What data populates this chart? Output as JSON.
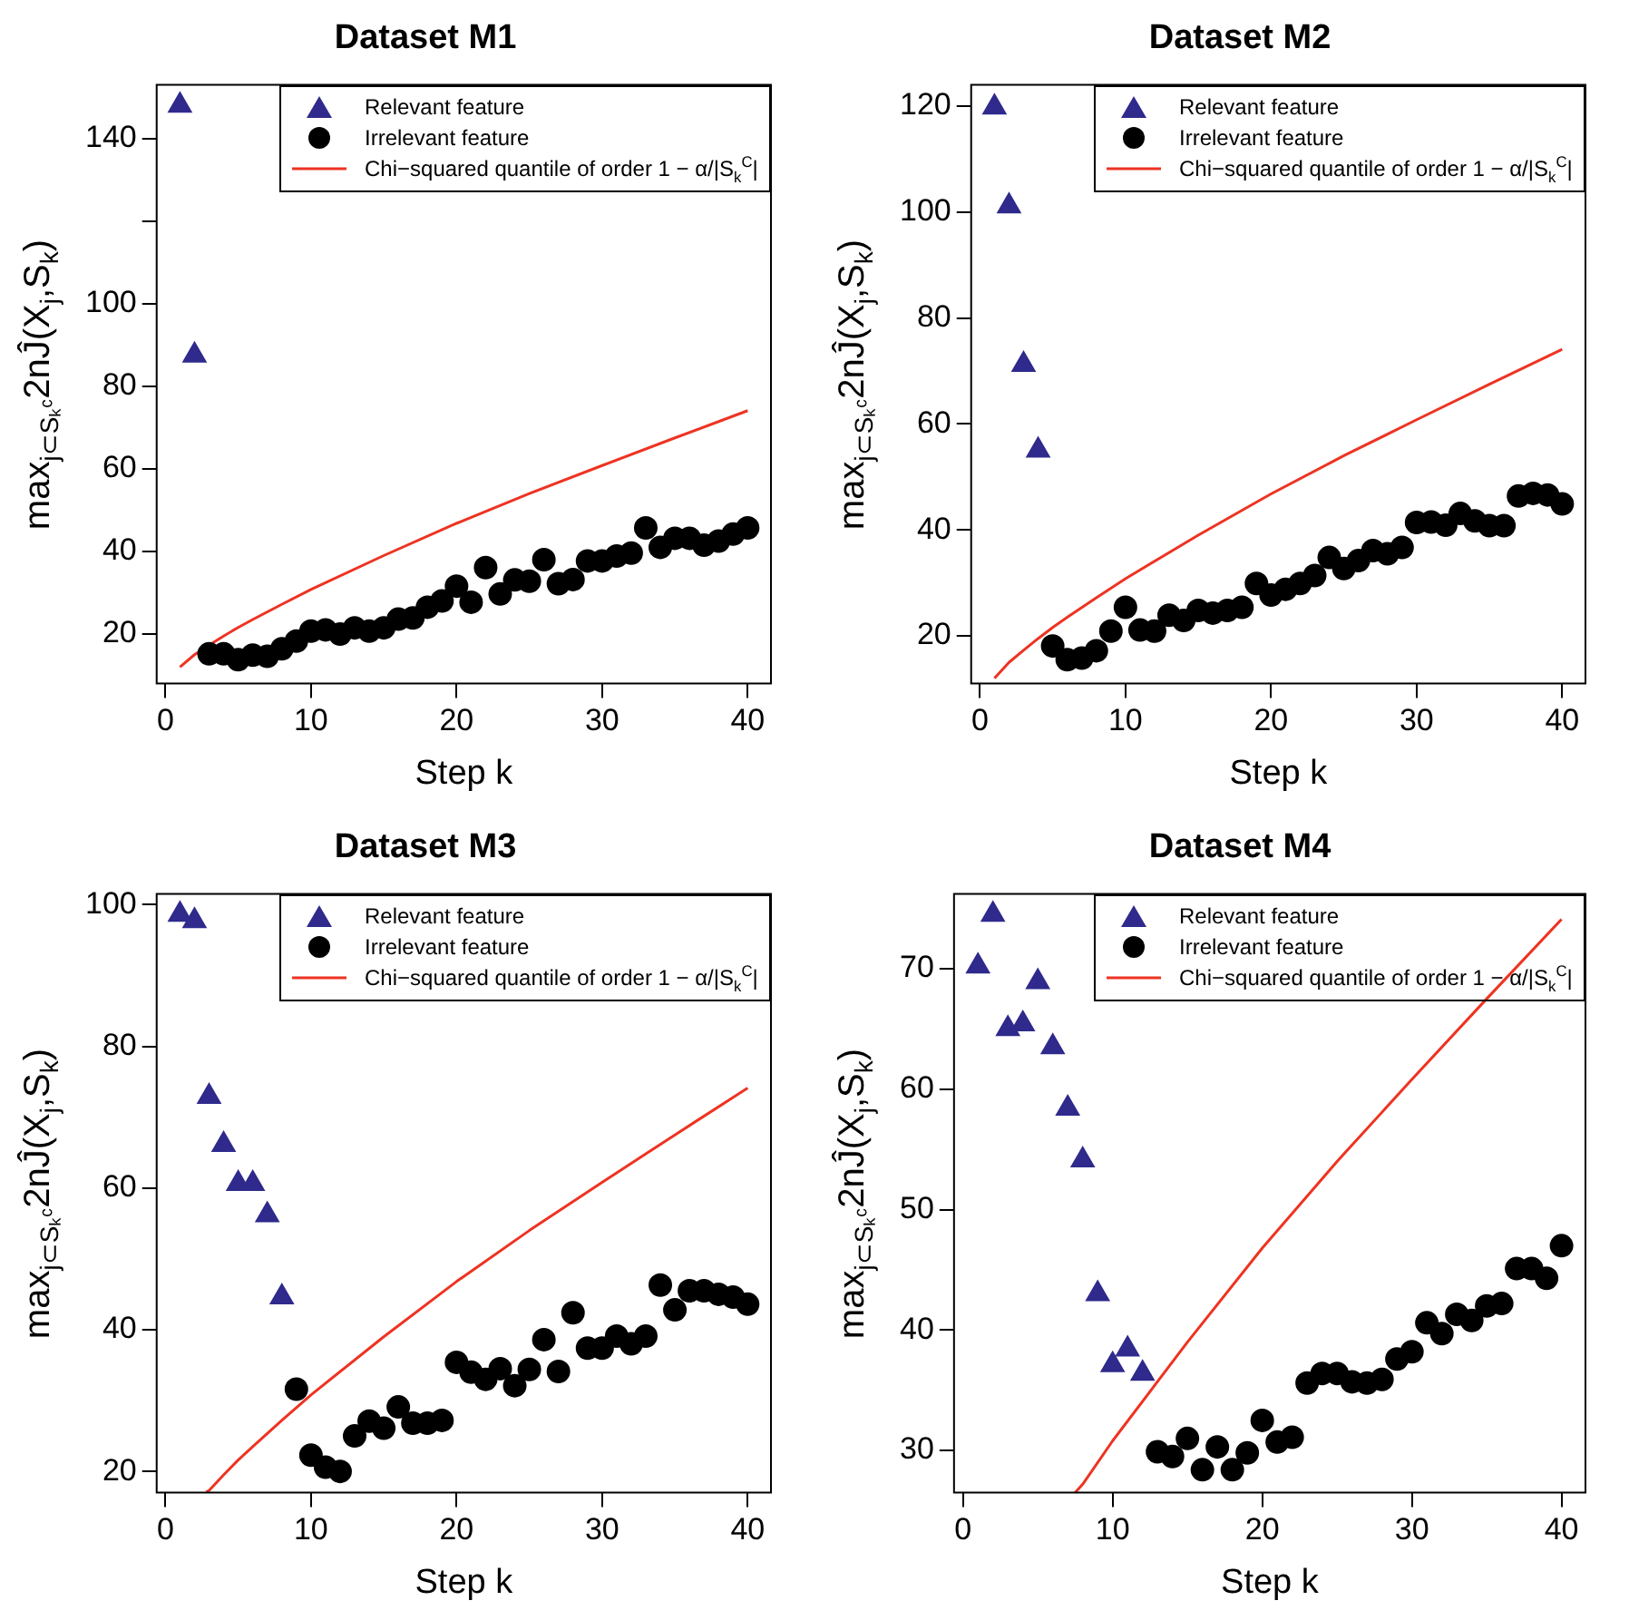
{
  "chart_data": [
    {
      "type": "scatter",
      "title": "Dataset M1",
      "xlabel": "Step k",
      "ylabel": "max$_{j⊂Sₖᶜ}$2nĴ(X$_{j}$,S$_{k}$)",
      "xlim": [
        -0.6,
        41.6
      ],
      "xticks": [
        0,
        10,
        20,
        30,
        40
      ],
      "ylim": [
        8,
        153
      ],
      "yticks": [
        20,
        40,
        60,
        80,
        100,
        {
          "value": 120,
          "label": null
        },
        140
      ],
      "legend": "top right",
      "series": [
        {
          "name": "Relevant feature",
          "type": "scatter",
          "marker": "triangle",
          "color": "#2f2a8c",
          "x": [
            1,
            2
          ],
          "values": [
            148,
            87.5
          ]
        },
        {
          "name": "Irrelevant feature",
          "type": "scatter",
          "marker": "circle",
          "color": "#000000",
          "x": [
            3,
            4,
            5,
            6,
            7,
            8,
            9,
            10,
            11,
            12,
            13,
            14,
            15,
            16,
            17,
            18,
            19,
            20,
            21,
            22,
            23,
            24,
            25,
            26,
            27,
            28,
            29,
            30,
            31,
            32,
            33,
            34,
            35,
            36,
            37,
            38,
            39,
            40
          ],
          "values": [
            15.2,
            15.2,
            13.8,
            14.9,
            14.6,
            16.4,
            18.3,
            20.7,
            21,
            20,
            21.5,
            20.7,
            21.5,
            23.6,
            23.9,
            26.5,
            28,
            31.6,
            27.7,
            36.1,
            29.7,
            33.1,
            32.8,
            38,
            32.2,
            33.2,
            37.7,
            37.7,
            38.9,
            39.6,
            45.7,
            41,
            43.2,
            43.2,
            41.5,
            42.5,
            44.2,
            45.7
          ]
        },
        {
          "name": "Chi−squared quantile of order 1 − α/|S$_{k}$$^{C}$|",
          "type": "line",
          "marker": "none",
          "line_style": "solid",
          "color": "#ee3322",
          "x": [
            1,
            2,
            3,
            4,
            5,
            6,
            8,
            10,
            15,
            20,
            25,
            30,
            35,
            40
          ],
          "values": [
            12,
            15,
            17.3,
            19.5,
            21.6,
            23.5,
            27.2,
            30.8,
            39,
            46.8,
            54,
            60.8,
            67.5,
            74.1
          ]
        }
      ]
    },
    {
      "type": "scatter",
      "title": "Dataset M2",
      "xlabel": "Step k",
      "ylabel": "max$_{j⊂Sₖᶜ}$2nĴ(X$_{j}$,S$_{k}$)",
      "xlim": [
        -0.6,
        41.6
      ],
      "xticks": [
        0,
        10,
        20,
        30,
        40
      ],
      "ylim": [
        11,
        124
      ],
      "yticks": [
        20,
        40,
        60,
        80,
        100,
        120
      ],
      "legend": "top right",
      "series": [
        {
          "name": "Relevant feature",
          "type": "scatter",
          "marker": "triangle",
          "color": "#2f2a8c",
          "x": [
            1,
            2,
            3,
            4
          ],
          "values": [
            119.8,
            101.1,
            71.2,
            55
          ]
        },
        {
          "name": "Irrelevant feature",
          "type": "scatter",
          "marker": "circle",
          "color": "#000000",
          "x": [
            5,
            6,
            7,
            8,
            9,
            10,
            11,
            12,
            13,
            14,
            15,
            16,
            17,
            18,
            19,
            20,
            21,
            22,
            23,
            24,
            25,
            26,
            27,
            28,
            29,
            30,
            31,
            32,
            33,
            34,
            35,
            36,
            37,
            38,
            39,
            40
          ],
          "values": [
            18.1,
            15.5,
            15.8,
            17.2,
            20.9,
            25.4,
            21.1,
            20.9,
            23.9,
            22.9,
            24.8,
            24.3,
            24.8,
            25.4,
            29.9,
            27.7,
            28.8,
            29.9,
            31.4,
            34.8,
            32.7,
            34.2,
            36.1,
            35.5,
            36.7,
            41.4,
            41.5,
            40.9,
            43.1,
            41.7,
            40.8,
            40.8,
            46.4,
            46.9,
            46.6,
            44.9
          ]
        },
        {
          "name": "Chi−squared quantile of order 1 − α/|S$_{k}$$^{C}$|",
          "type": "line",
          "marker": "none",
          "line_style": "solid",
          "color": "#ee3322",
          "x": [
            1,
            2,
            3,
            4,
            5,
            6,
            8,
            10,
            15,
            20,
            25,
            30,
            35,
            40
          ],
          "values": [
            12,
            15,
            17.3,
            19.5,
            21.6,
            23.5,
            27.2,
            30.8,
            39,
            46.8,
            54,
            60.8,
            67.5,
            74.1
          ]
        }
      ]
    },
    {
      "type": "scatter",
      "title": "Dataset M3",
      "xlabel": "Step k",
      "ylabel": "max$_{j⊂Sₖᶜ}$2nĴ(X$_{j}$,S$_{k}$)",
      "xlim": [
        -0.6,
        41.6
      ],
      "xticks": [
        0,
        10,
        20,
        30,
        40
      ],
      "ylim": [
        17,
        101.5
      ],
      "yticks": [
        20,
        40,
        60,
        80,
        100
      ],
      "legend": "top right",
      "series": [
        {
          "name": "Relevant feature",
          "type": "scatter",
          "marker": "triangle",
          "color": "#2f2a8c",
          "x": [
            1,
            2,
            3,
            4,
            5,
            6,
            7,
            8
          ],
          "values": [
            98.6,
            97.7,
            72.9,
            66.1,
            60.6,
            60.6,
            56.2,
            44.6
          ]
        },
        {
          "name": "Irrelevant feature",
          "type": "scatter",
          "marker": "circle",
          "color": "#000000",
          "x": [
            9,
            10,
            11,
            12,
            13,
            14,
            15,
            16,
            17,
            18,
            19,
            20,
            21,
            22,
            23,
            24,
            25,
            26,
            27,
            28,
            29,
            30,
            31,
            32,
            33,
            34,
            35,
            36,
            37,
            38,
            39,
            40
          ],
          "values": [
            31.6,
            22.3,
            20.6,
            20,
            25,
            27.1,
            26.1,
            29.1,
            26.8,
            26.8,
            27.2,
            35.4,
            34,
            33,
            34.5,
            32.1,
            34.4,
            38.6,
            34.1,
            42.4,
            37.4,
            37.4,
            39.1,
            38,
            39.1,
            46.3,
            42.8,
            45.5,
            45.5,
            45,
            44.6,
            43.6
          ]
        },
        {
          "name": "Chi−squared quantile of order 1 − α/|S$_{k}$$^{C}$|",
          "type": "line",
          "marker": "none",
          "line_style": "solid",
          "color": "#ee3322",
          "x": [
            2.8,
            3,
            4,
            5,
            6,
            8,
            10,
            15,
            20,
            25,
            30,
            35,
            40
          ],
          "values": [
            17.1,
            17.3,
            19.5,
            21.6,
            23.5,
            27.2,
            30.8,
            39,
            46.8,
            54,
            60.8,
            67.5,
            74.1
          ]
        }
      ]
    },
    {
      "type": "scatter",
      "title": "Dataset M4",
      "xlabel": "Step k",
      "ylabel": "max$_{j⊂Sₖᶜ}$2nĴ(X$_{j}$,S$_{k}$)",
      "xlim": [
        -0.6,
        41.6
      ],
      "xticks": [
        0,
        10,
        20,
        30,
        40
      ],
      "ylim": [
        26.5,
        76.2
      ],
      "yticks": [
        30,
        40,
        50,
        60,
        70
      ],
      "legend": "top right",
      "series": [
        {
          "name": "Relevant feature",
          "type": "scatter",
          "marker": "triangle",
          "color": "#2f2a8c",
          "x": [
            1,
            2,
            3,
            4,
            5,
            6,
            7,
            8,
            9,
            10,
            11,
            12
          ],
          "values": [
            70.2,
            74.5,
            65,
            65.4,
            68.9,
            63.5,
            58.4,
            54.1,
            43,
            37.1,
            38.4,
            36.4
          ]
        },
        {
          "name": "Irrelevant feature",
          "type": "scatter",
          "marker": "circle",
          "color": "#000000",
          "x": [
            13,
            14,
            15,
            16,
            17,
            18,
            19,
            20,
            21,
            22,
            23,
            24,
            25,
            26,
            27,
            28,
            29,
            30,
            31,
            32,
            33,
            34,
            35,
            36,
            37,
            38,
            39,
            40
          ],
          "values": [
            29.9,
            29.5,
            31,
            28.4,
            30.3,
            28.4,
            29.8,
            32.5,
            30.7,
            31.1,
            35.6,
            36.4,
            36.4,
            35.7,
            35.6,
            35.9,
            37.6,
            38.2,
            40.6,
            39.7,
            41.3,
            40.8,
            42,
            42.2,
            45.1,
            45.1,
            44.3,
            47
          ]
        },
        {
          "name": "Chi−squared quantile of order 1 − α/|S$_{k}$$^{C}$|",
          "type": "line",
          "marker": "none",
          "line_style": "solid",
          "color": "#ee3322",
          "x": [
            7.5,
            8,
            10,
            15,
            20,
            25,
            30,
            35,
            40
          ],
          "values": [
            26.5,
            27.2,
            30.8,
            39,
            46.8,
            54,
            60.8,
            67.5,
            74.1
          ]
        }
      ]
    }
  ]
}
